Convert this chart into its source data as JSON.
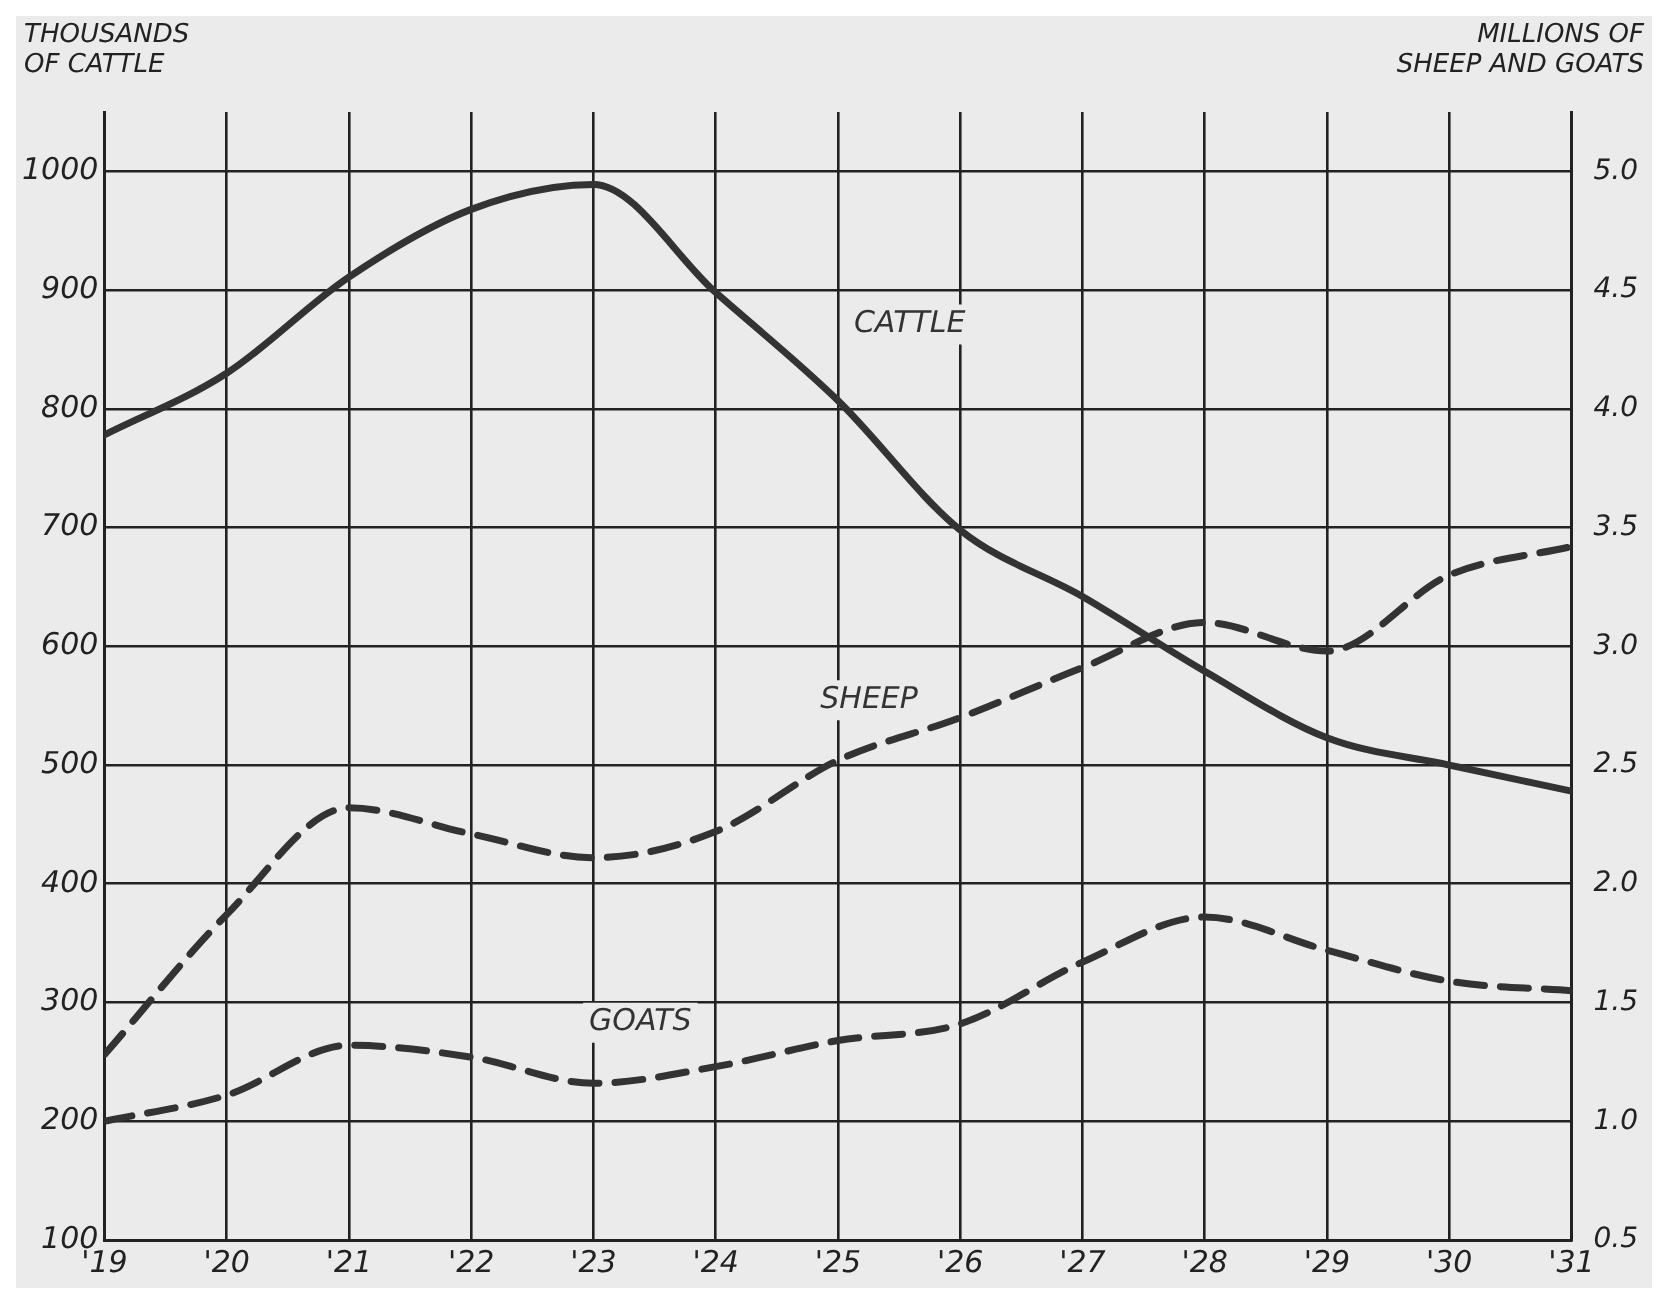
{
  "chart_data": {
    "type": "line",
    "ylabel": "THOUSANDS\nOF CATTLE",
    "y2label": "MILLIONS OF\nSHEEP AND GOATS",
    "x": [
      1919,
      1920,
      1921,
      1922,
      1923,
      1924,
      1925,
      1926,
      1927,
      1928,
      1929,
      1930,
      1931
    ],
    "series": [
      {
        "name": "CATTLE",
        "color": "#333333",
        "line_style": "solid",
        "values": [
          778,
          830,
          911,
          968,
          989,
          898,
          807,
          698,
          642,
          579,
          523,
          500,
          478
        ]
      },
      {
        "name": "SHEEP",
        "color": "#333333",
        "line_style": "dashed",
        "axis": "y2",
        "values": [
          1.28,
          1.87,
          2.32,
          2.21,
          2.11,
          2.22,
          2.52,
          2.7,
          2.91,
          3.1,
          2.98,
          3.3,
          3.42
        ]
      },
      {
        "name": "GOATS",
        "color": "#333333",
        "line_style": "dashed",
        "axis": "y2",
        "values": [
          1.0,
          1.11,
          1.32,
          1.27,
          1.16,
          1.23,
          1.34,
          1.41,
          1.67,
          1.86,
          1.72,
          1.59,
          1.55
        ]
      }
    ],
    "xlim": [
      1919,
      1931
    ],
    "xticks": [
      {
        "value": 1919,
        "label": "'19"
      },
      {
        "value": 1920,
        "label": "'20"
      },
      {
        "value": 1921,
        "label": "'21"
      },
      {
        "value": 1922,
        "label": "'22"
      },
      {
        "value": 1923,
        "label": "'23"
      },
      {
        "value": 1924,
        "label": "'24"
      },
      {
        "value": 1925,
        "label": "'25"
      },
      {
        "value": 1926,
        "label": "'26"
      },
      {
        "value": 1927,
        "label": "'27"
      },
      {
        "value": 1928,
        "label": "'28"
      },
      {
        "value": 1929,
        "label": "'29"
      },
      {
        "value": 1930,
        "label": "'30"
      },
      {
        "value": 1931,
        "label": "'31"
      }
    ],
    "ylim": [
      100,
      1050
    ],
    "yticks": [
      100,
      200,
      300,
      400,
      500,
      600,
      700,
      800,
      900,
      1000
    ],
    "y2lim": [
      0.5,
      5.25
    ],
    "y2ticks": [
      0.5,
      {
        "value": 1,
        "label": "1.0"
      },
      1.5,
      {
        "value": 2,
        "label": "2.0"
      },
      2.5,
      {
        "value": 3,
        "label": "3.0"
      },
      3.5,
      {
        "value": 4,
        "label": "4.0"
      },
      4.5,
      {
        "value": 5,
        "label": "5.0"
      }
    ],
    "grid": true,
    "legend": false,
    "marker": "none"
  }
}
